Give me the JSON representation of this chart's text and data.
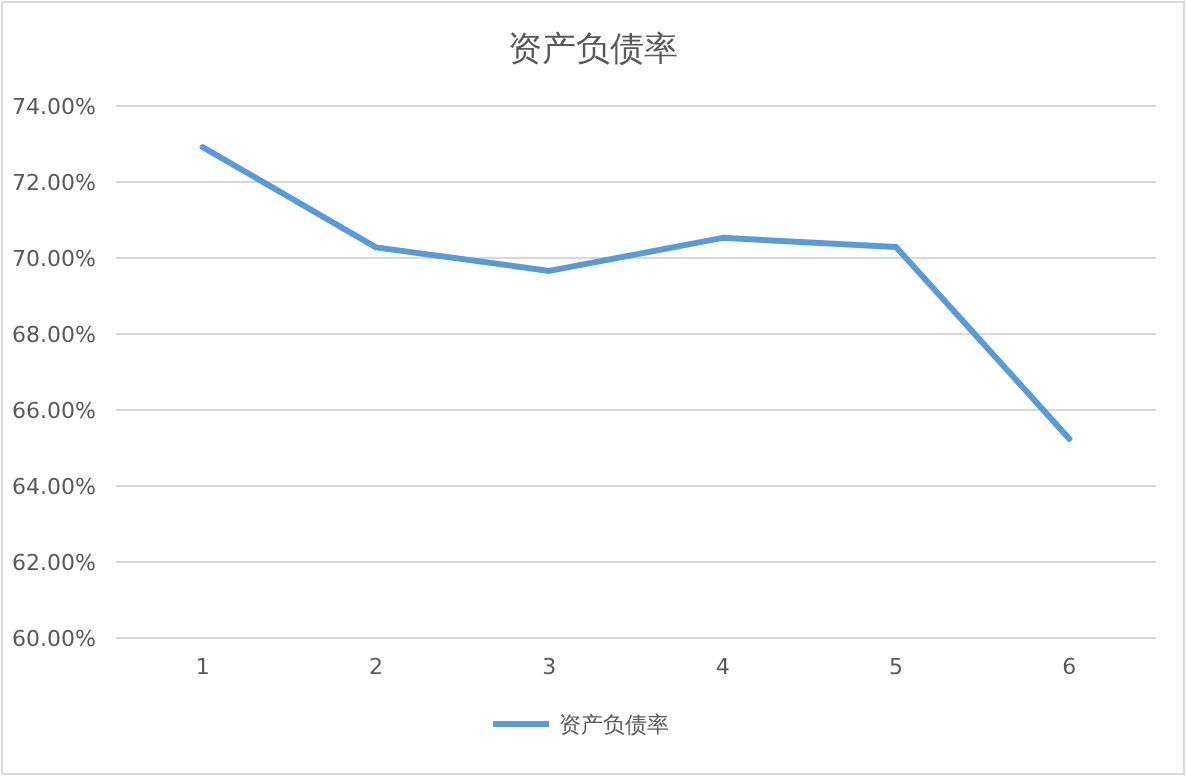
{
  "chart_data": {
    "type": "line",
    "title": "资产负债率",
    "categories": [
      "1",
      "2",
      "3",
      "4",
      "5",
      "6"
    ],
    "series": [
      {
        "name": "资产负债率",
        "color": "#5b9bd5",
        "values": [
          72.92,
          70.28,
          69.66,
          70.53,
          70.29,
          65.24
        ]
      }
    ],
    "ylim": [
      60,
      74
    ],
    "yticks": [
      {
        "value": 60,
        "label": "60.00%"
      },
      {
        "value": 62,
        "label": "62.00%"
      },
      {
        "value": 64,
        "label": "64.00%"
      },
      {
        "value": 66,
        "label": "66.00%"
      },
      {
        "value": 68,
        "label": "68.00%"
      },
      {
        "value": 70,
        "label": "70.00%"
      },
      {
        "value": 72,
        "label": "72.00%"
      },
      {
        "value": 74,
        "label": "74.00%"
      }
    ],
    "grid": "y",
    "legend": "bottom",
    "marker": "none",
    "line_style": "solid"
  }
}
